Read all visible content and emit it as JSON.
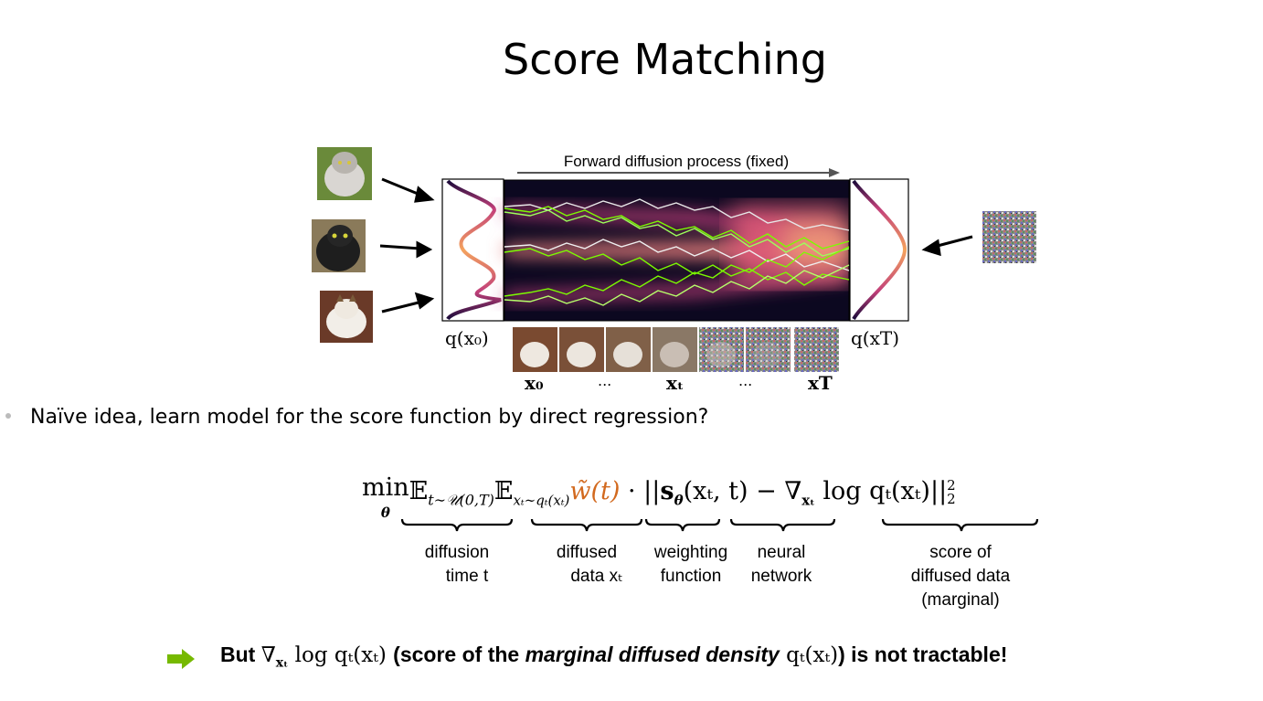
{
  "title": "Score Matching",
  "figure": {
    "forward_label": "Forward diffusion process (fixed)",
    "q0_label": "q(x₀)",
    "qT_label": "q(xT)",
    "seq_labels": [
      "x₀",
      "...",
      "xₜ",
      "...",
      "xT"
    ]
  },
  "bullet": "Naïve idea, learn model for the score function by direct regression?",
  "equation": {
    "min": "min",
    "min_sub": "θ",
    "e1": "𝔼",
    "e1_sub": "t∼𝒰(0,T)",
    "e2": "𝔼",
    "e2_sub": "xₜ∼qₜ(xₜ)",
    "weight": "w̃(t)",
    "dot": " · ",
    "norm_open": "||",
    "score_model": "s",
    "score_model_sub": "θ",
    "score_model_args": "(xₜ, t)",
    "minus": " − ",
    "nabla": "∇",
    "nabla_sub": "xₜ",
    "log_term": " log qₜ(xₜ)",
    "norm_close": "||",
    "norm_sup": "2",
    "norm_sub": "2"
  },
  "annotations": {
    "diffusion_time": [
      "diffusion",
      "time t"
    ],
    "diffused_data": [
      "diffused",
      "data xₜ"
    ],
    "weighting": [
      "weighting",
      "function"
    ],
    "network": [
      "neural",
      "network"
    ],
    "score": [
      "score of",
      "diffused data",
      "(marginal)"
    ]
  },
  "conclusion": {
    "part1": "But ",
    "nabla": "∇",
    "nabla_sub": "xₜ",
    "log": " log qₜ(xₜ) ",
    "part2": "(score of the ",
    "italic": "marginal diffused density",
    "q": " qₜ(xₜ)",
    "part3": ") is not tractable!"
  },
  "colors": {
    "arrow_green": "#76b900",
    "weight_orange": "#d2691e",
    "trajectory_green": "#7cfc00"
  }
}
